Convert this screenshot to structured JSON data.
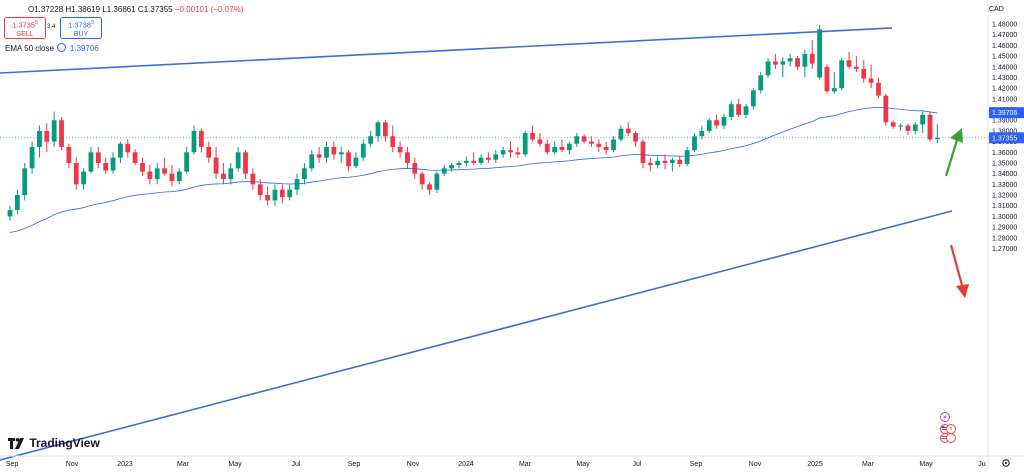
{
  "ohlc": {
    "open": "O1.37228",
    "high": "H1.38619",
    "low": "L1.36861",
    "close": "C1.37355",
    "change": "−0.00101 (−0.07%)"
  },
  "trade": {
    "sell_price": "1.3735",
    "sell_sup": "5",
    "sell_label": "SELL",
    "spread": "3.4",
    "buy_price": "1.3738",
    "buy_sup": "9",
    "buy_label": "BUY"
  },
  "ema": {
    "label": "EMA 50 close",
    "value": "1.39706"
  },
  "currency": "CAD",
  "brand": "TradingView",
  "colors": {
    "up": "#089981",
    "down": "#f23645",
    "ema": "#2962ff",
    "trend": "#3a6fd8",
    "arrow_up": "#3aa13a",
    "arrow_down": "#e53935"
  },
  "chart_data": {
    "type": "candlestick",
    "interval": "weekly",
    "ylim": [
      1.262,
      1.485
    ],
    "y_ticks": [
      "1.48000",
      "1.47000",
      "1.46000",
      "1.45000",
      "1.44000",
      "1.43000",
      "1.42000",
      "1.41000",
      "1.40000",
      "1.39000",
      "1.38000",
      "1.37000",
      "1.36000",
      "1.35000",
      "1.34000",
      "1.33000",
      "1.32000",
      "1.31000",
      "1.30000",
      "1.29000",
      "1.28000",
      "1.27000"
    ],
    "x_ticks": [
      "Sep",
      "Nov",
      "2023",
      "Mar",
      "May",
      "Jul",
      "Sep",
      "Nov",
      "2024",
      "Mar",
      "May",
      "Jul",
      "Sep",
      "Nov",
      "2025",
      "Mar",
      "May",
      "Ju"
    ],
    "price_tags": {
      "ema": "1.39706",
      "last": "1.37355"
    },
    "candles": [
      [
        1.3,
        1.31,
        1.296,
        1.306
      ],
      [
        1.306,
        1.325,
        1.302,
        1.32
      ],
      [
        1.32,
        1.35,
        1.315,
        1.345
      ],
      [
        1.345,
        1.37,
        1.34,
        1.365
      ],
      [
        1.365,
        1.385,
        1.355,
        1.38
      ],
      [
        1.38,
        1.387,
        1.36,
        1.37
      ],
      [
        1.37,
        1.398,
        1.365,
        1.39
      ],
      [
        1.39,
        1.393,
        1.362,
        1.365
      ],
      [
        1.365,
        1.368,
        1.345,
        1.35
      ],
      [
        1.35,
        1.355,
        1.325,
        1.33
      ],
      [
        1.33,
        1.345,
        1.325,
        1.342
      ],
      [
        1.342,
        1.365,
        1.34,
        1.36
      ],
      [
        1.36,
        1.365,
        1.345,
        1.35
      ],
      [
        1.35,
        1.355,
        1.34,
        1.343
      ],
      [
        1.343,
        1.36,
        1.34,
        1.355
      ],
      [
        1.355,
        1.37,
        1.35,
        1.368
      ],
      [
        1.368,
        1.372,
        1.355,
        1.36
      ],
      [
        1.36,
        1.363,
        1.348,
        1.35
      ],
      [
        1.35,
        1.355,
        1.338,
        1.342
      ],
      [
        1.342,
        1.348,
        1.33,
        1.335
      ],
      [
        1.335,
        1.35,
        1.33,
        1.345
      ],
      [
        1.345,
        1.355,
        1.338,
        1.34
      ],
      [
        1.34,
        1.348,
        1.328,
        1.333
      ],
      [
        1.333,
        1.345,
        1.33,
        1.342
      ],
      [
        1.342,
        1.365,
        1.34,
        1.36
      ],
      [
        1.36,
        1.385,
        1.358,
        1.38
      ],
      [
        1.38,
        1.382,
        1.36,
        1.365
      ],
      [
        1.365,
        1.37,
        1.35,
        1.355
      ],
      [
        1.355,
        1.365,
        1.335,
        1.34
      ],
      [
        1.34,
        1.35,
        1.33,
        1.335
      ],
      [
        1.335,
        1.35,
        1.33,
        1.345
      ],
      [
        1.345,
        1.365,
        1.342,
        1.36
      ],
      [
        1.36,
        1.362,
        1.335,
        1.34
      ],
      [
        1.34,
        1.345,
        1.325,
        1.33
      ],
      [
        1.33,
        1.335,
        1.315,
        1.32
      ],
      [
        1.32,
        1.328,
        1.31,
        1.315
      ],
      [
        1.315,
        1.33,
        1.31,
        1.325
      ],
      [
        1.325,
        1.33,
        1.312,
        1.318
      ],
      [
        1.318,
        1.33,
        1.315,
        1.325
      ],
      [
        1.325,
        1.34,
        1.32,
        1.335
      ],
      [
        1.335,
        1.35,
        1.33,
        1.345
      ],
      [
        1.345,
        1.362,
        1.342,
        1.358
      ],
      [
        1.358,
        1.365,
        1.35,
        1.355
      ],
      [
        1.355,
        1.37,
        1.35,
        1.365
      ],
      [
        1.365,
        1.37,
        1.353,
        1.358
      ],
      [
        1.358,
        1.365,
        1.35,
        1.36
      ],
      [
        1.36,
        1.362,
        1.342,
        1.347
      ],
      [
        1.347,
        1.36,
        1.345,
        1.355
      ],
      [
        1.355,
        1.372,
        1.352,
        1.368
      ],
      [
        1.368,
        1.38,
        1.365,
        1.375
      ],
      [
        1.375,
        1.39,
        1.37,
        1.388
      ],
      [
        1.388,
        1.39,
        1.37,
        1.375
      ],
      [
        1.375,
        1.385,
        1.36,
        1.365
      ],
      [
        1.365,
        1.37,
        1.355,
        1.36
      ],
      [
        1.36,
        1.365,
        1.345,
        1.35
      ],
      [
        1.35,
        1.355,
        1.335,
        1.34
      ],
      [
        1.34,
        1.342,
        1.325,
        1.33
      ],
      [
        1.33,
        1.332,
        1.32,
        1.325
      ],
      [
        1.325,
        1.342,
        1.322,
        1.34
      ],
      [
        1.34,
        1.348,
        1.338,
        1.345
      ],
      [
        1.345,
        1.35,
        1.342,
        1.348
      ],
      [
        1.348,
        1.352,
        1.345,
        1.35
      ],
      [
        1.35,
        1.356,
        1.347,
        1.352
      ],
      [
        1.352,
        1.36,
        1.348,
        1.35
      ],
      [
        1.35,
        1.358,
        1.348,
        1.355
      ],
      [
        1.355,
        1.36,
        1.35,
        1.353
      ],
      [
        1.353,
        1.362,
        1.35,
        1.358
      ],
      [
        1.358,
        1.365,
        1.355,
        1.362
      ],
      [
        1.362,
        1.37,
        1.355,
        1.36
      ],
      [
        1.36,
        1.365,
        1.355,
        1.358
      ],
      [
        1.358,
        1.38,
        1.356,
        1.378
      ],
      [
        1.378,
        1.385,
        1.37,
        1.372
      ],
      [
        1.372,
        1.378,
        1.365,
        1.368
      ],
      [
        1.368,
        1.372,
        1.358,
        1.36
      ],
      [
        1.36,
        1.37,
        1.358,
        1.365
      ],
      [
        1.365,
        1.372,
        1.36,
        1.362
      ],
      [
        1.362,
        1.37,
        1.358,
        1.368
      ],
      [
        1.368,
        1.378,
        1.365,
        1.375
      ],
      [
        1.375,
        1.377,
        1.368,
        1.37
      ],
      [
        1.37,
        1.375,
        1.365,
        1.368
      ],
      [
        1.368,
        1.372,
        1.36,
        1.365
      ],
      [
        1.365,
        1.37,
        1.358,
        1.362
      ],
      [
        1.362,
        1.375,
        1.36,
        1.372
      ],
      [
        1.372,
        1.385,
        1.37,
        1.382
      ],
      [
        1.382,
        1.388,
        1.375,
        1.378
      ],
      [
        1.378,
        1.38,
        1.365,
        1.37
      ],
      [
        1.37,
        1.372,
        1.345,
        1.35
      ],
      [
        1.35,
        1.355,
        1.342,
        1.348
      ],
      [
        1.348,
        1.356,
        1.345,
        1.352
      ],
      [
        1.352,
        1.358,
        1.344,
        1.35
      ],
      [
        1.35,
        1.355,
        1.342,
        1.353
      ],
      [
        1.353,
        1.356,
        1.346,
        1.349
      ],
      [
        1.349,
        1.365,
        1.347,
        1.362
      ],
      [
        1.362,
        1.378,
        1.36,
        1.375
      ],
      [
        1.375,
        1.385,
        1.372,
        1.38
      ],
      [
        1.38,
        1.392,
        1.378,
        1.39
      ],
      [
        1.39,
        1.395,
        1.382,
        1.385
      ],
      [
        1.385,
        1.396,
        1.382,
        1.393
      ],
      [
        1.393,
        1.408,
        1.39,
        1.405
      ],
      [
        1.405,
        1.41,
        1.393,
        1.395
      ],
      [
        1.395,
        1.405,
        1.392,
        1.403
      ],
      [
        1.403,
        1.42,
        1.4,
        1.418
      ],
      [
        1.418,
        1.435,
        1.415,
        1.432
      ],
      [
        1.432,
        1.448,
        1.43,
        1.445
      ],
      [
        1.445,
        1.452,
        1.438,
        1.442
      ],
      [
        1.442,
        1.449,
        1.43,
        1.445
      ],
      [
        1.445,
        1.452,
        1.44,
        1.448
      ],
      [
        1.448,
        1.45,
        1.437,
        1.44
      ],
      [
        1.44,
        1.456,
        1.43,
        1.452
      ],
      [
        1.452,
        1.465,
        1.438,
        1.443
      ],
      [
        1.43,
        1.479,
        1.428,
        1.475
      ],
      [
        1.44,
        1.442,
        1.415,
        1.417
      ],
      [
        1.417,
        1.435,
        1.415,
        1.42
      ],
      [
        1.42,
        1.448,
        1.418,
        1.446
      ],
      [
        1.446,
        1.454,
        1.438,
        1.44
      ],
      [
        1.44,
        1.45,
        1.435,
        1.438
      ],
      [
        1.438,
        1.446,
        1.425,
        1.429
      ],
      [
        1.429,
        1.442,
        1.42,
        1.425
      ],
      [
        1.425,
        1.43,
        1.41,
        1.413
      ],
      [
        1.413,
        1.415,
        1.385,
        1.388
      ],
      [
        1.388,
        1.39,
        1.382,
        1.384
      ],
      [
        1.384,
        1.387,
        1.38,
        1.385
      ],
      [
        1.385,
        1.387,
        1.376,
        1.38
      ],
      [
        1.38,
        1.388,
        1.377,
        1.386
      ],
      [
        1.386,
        1.398,
        1.378,
        1.395
      ],
      [
        1.395,
        1.398,
        1.37,
        1.372
      ],
      [
        1.3723,
        1.3862,
        1.3686,
        1.3736
      ]
    ]
  }
}
